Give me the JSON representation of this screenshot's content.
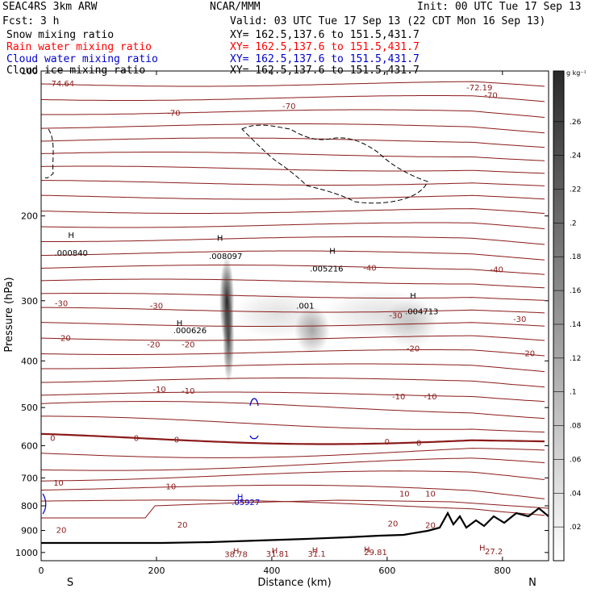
{
  "header": {
    "model": "SEAC4RS   3km ARW",
    "center": "NCAR/MMM",
    "init": "Init: 00 UTC Tue 17 Sep 13",
    "fcst": "Fcst:    3 h",
    "valid": "Valid: 03 UTC Tue 17 Sep 13 (22 CDT Mon 16 Sep 13)",
    "fields": [
      {
        "name": "Snow mixing ratio",
        "xy": "XY= 162.5,137.6 to 151.5,431.7",
        "color": "#000000"
      },
      {
        "name": "Rain water mixing ratio",
        "xy": "XY= 162.5,137.6 to 151.5,431.7",
        "color": "#ff0000"
      },
      {
        "name": "Cloud water mixing ratio",
        "xy": "XY= 162.5,137.6 to 151.5,431.7",
        "color": "#0000cc"
      },
      {
        "name": "Cloud ice mixing ratio",
        "xy": "XY= 162.5,137.6 to 151.5,431.7",
        "color": "#000000"
      }
    ]
  },
  "chart_data": {
    "type": "cross-section",
    "xlabel": "Distance (km)",
    "ylabel": "Pressure (hPa)",
    "xlim": [
      0,
      880
    ],
    "ylim": [
      1040,
      100
    ],
    "y_scale": "log",
    "xticks": [
      0,
      200,
      400,
      600,
      800
    ],
    "yticks": [
      100,
      200,
      300,
      400,
      500,
      600,
      700,
      800,
      900,
      1000
    ],
    "x_end_labels": {
      "left": "S",
      "right": "N"
    },
    "colorbar": {
      "unit": "g kg⁻¹",
      "ticks": [
        ".02",
        ".04",
        ".06",
        ".08",
        ".1",
        ".12",
        ".14",
        ".16",
        ".18",
        ".2",
        ".22",
        ".24",
        ".26"
      ],
      "range": [
        0,
        0.29
      ]
    },
    "colors": {
      "temperature": "#8b1a1a",
      "cloud_water": "#0000cc",
      "terrain": "#000000"
    },
    "temperature_labels": [
      {
        "text": "-74.64",
        "x": 35,
        "p": 106
      },
      {
        "text": "-70",
        "x": 230,
        "p": 122
      },
      {
        "text": "-70",
        "x": 430,
        "p": 118
      },
      {
        "text": "-72.19",
        "x": 760,
        "p": 108
      },
      {
        "text": "-70",
        "x": 780,
        "p": 112
      },
      {
        "text": "-40",
        "x": 570,
        "p": 256
      },
      {
        "text": "-40",
        "x": 790,
        "p": 258
      },
      {
        "text": "-30",
        "x": 35,
        "p": 303
      },
      {
        "text": "-30",
        "x": 200,
        "p": 307
      },
      {
        "text": "-30",
        "x": 615,
        "p": 321
      },
      {
        "text": "-30",
        "x": 830,
        "p": 327
      },
      {
        "text": "-20",
        "x": 40,
        "p": 358
      },
      {
        "text": "-20",
        "x": 195,
        "p": 369
      },
      {
        "text": "-20",
        "x": 255,
        "p": 369
      },
      {
        "text": "-20",
        "x": 645,
        "p": 376
      },
      {
        "text": "-20",
        "x": 845,
        "p": 385
      },
      {
        "text": "-10",
        "x": 205,
        "p": 457
      },
      {
        "text": "-10",
        "x": 255,
        "p": 461
      },
      {
        "text": "-10",
        "x": 620,
        "p": 473
      },
      {
        "text": "-10",
        "x": 675,
        "p": 473
      },
      {
        "text": "0",
        "x": 20,
        "p": 577
      },
      {
        "text": "0",
        "x": 165,
        "p": 577
      },
      {
        "text": "0",
        "x": 235,
        "p": 582
      },
      {
        "text": "0",
        "x": 600,
        "p": 588
      },
      {
        "text": "0",
        "x": 655,
        "p": 591
      },
      {
        "text": "10",
        "x": 30,
        "p": 715
      },
      {
        "text": "10",
        "x": 225,
        "p": 728
      },
      {
        "text": "10",
        "x": 630,
        "p": 753
      },
      {
        "text": "10",
        "x": 675,
        "p": 753
      },
      {
        "text": "20",
        "x": 35,
        "p": 896
      },
      {
        "text": "20",
        "x": 245,
        "p": 875
      },
      {
        "text": "20",
        "x": 610,
        "p": 870
      },
      {
        "text": "20",
        "x": 675,
        "p": 876
      }
    ],
    "maxima_labels": [
      {
        "text": ".000840",
        "x": 52,
        "p": 238
      },
      {
        "text": ".008097",
        "x": 320,
        "p": 242
      },
      {
        "text": ".005216",
        "x": 495,
        "p": 257
      },
      {
        "text": ".001",
        "x": 458,
        "p": 307
      },
      {
        "text": ".004713",
        "x": 660,
        "p": 315
      },
      {
        "text": ".000626",
        "x": 258,
        "p": 345
      },
      {
        "text": ".05927",
        "x": 355,
        "p": 785
      },
      {
        "text": "38.78",
        "x": 338,
        "p": 1007
      },
      {
        "text": "31.81",
        "x": 410,
        "p": 1004
      },
      {
        "text": "31.1",
        "x": 478,
        "p": 1004
      },
      {
        "text": "29.81",
        "x": 580,
        "p": 996
      },
      {
        "text": "27.2",
        "x": 785,
        "p": 993
      }
    ],
    "h_markers": [
      {
        "text": "H",
        "x": 52,
        "p": 219
      },
      {
        "text": "H",
        "x": 310,
        "p": 222
      },
      {
        "text": "H",
        "x": 505,
        "p": 236
      },
      {
        "text": "H",
        "x": 645,
        "p": 292
      },
      {
        "text": "H",
        "x": 240,
        "p": 333
      },
      {
        "text": "H",
        "x": 345,
        "p": 766
      },
      {
        "text": "H",
        "x": 338,
        "p": 991
      },
      {
        "text": "H",
        "x": 405,
        "p": 990
      },
      {
        "text": "H",
        "x": 475,
        "p": 987
      },
      {
        "text": "H",
        "x": 565,
        "p": 983
      },
      {
        "text": "H",
        "x": 765,
        "p": 976
      }
    ],
    "snow_clusters": [
      {
        "x": 322,
        "p": 300,
        "rx": 9,
        "intensity": 0.85
      },
      {
        "x": 325,
        "p": 360,
        "rx": 7,
        "intensity": 0.7
      },
      {
        "x": 470,
        "p": 345,
        "rx": 22,
        "intensity": 0.35
      },
      {
        "x": 410,
        "p": 320,
        "rx": 55,
        "intensity": 0.12
      },
      {
        "x": 590,
        "p": 320,
        "rx": 75,
        "intensity": 0.12
      },
      {
        "x": 640,
        "p": 335,
        "rx": 35,
        "intensity": 0.18
      }
    ]
  }
}
